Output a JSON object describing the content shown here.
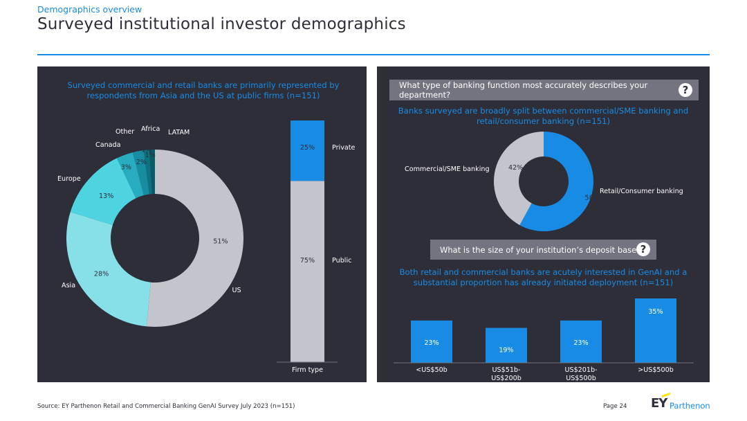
{
  "header": {
    "eyebrow": "Demographics overview",
    "title": "Surveyed institutional investor demographics"
  },
  "left": {
    "subtitle": "Surveyed commercial and retail banks are primarily represented by respondents from Asia and the US at public firms (n=151)"
  },
  "right": {
    "question1": "What type of banking function most accurately describes your department?",
    "subtitle1": "Banks surveyed are broadly split between commercial/SME banking and retail/consumer banking (n=151)",
    "question2": "What is the size of your institution’s deposit base?",
    "subtitle2": "Both retail and commercial banks are acutely interested in GenAI and a substantial proportion has already initiated deployment (n=151)",
    "question_icon": "?"
  },
  "chart_data": [
    {
      "type": "pie",
      "variant": "donut",
      "categories": [
        "US",
        "Asia",
        "Europe",
        "Canada",
        "Other",
        "Africa",
        "LATAM"
      ],
      "values": [
        51,
        28,
        13,
        3,
        2,
        1,
        1
      ],
      "value_labels": [
        "51%",
        "28%",
        "13%",
        "3%",
        "2%",
        "1%",
        "1%"
      ],
      "colors": [
        "#c4c4cd",
        "#87e0e8",
        "#4ed3e0",
        "#27acc0",
        "#168da0",
        "#0e7282",
        "#0a5b69"
      ]
    },
    {
      "type": "bar",
      "variant": "100% stacked column",
      "categories": [
        "Firm type"
      ],
      "series": [
        {
          "name": "Public",
          "values": [
            75
          ],
          "value_label": "75%",
          "color": "#c4c4cd"
        },
        {
          "name": "Private",
          "values": [
            25
          ],
          "value_label": "25%",
          "color": "#188ce5"
        }
      ],
      "xlabel": "Firm type"
    },
    {
      "type": "pie",
      "variant": "donut",
      "categories": [
        "Retail/Consumer banking",
        "Commercial/SME banking"
      ],
      "values": [
        58,
        42
      ],
      "value_labels": [
        "58%",
        "42%"
      ],
      "colors": [
        "#188ce5",
        "#c4c4cd"
      ]
    },
    {
      "type": "bar",
      "categories": [
        "<US$50b",
        "US$51b-\nUS$200b",
        "US$201b-\nUS$500b",
        ">US$500b"
      ],
      "values": [
        23,
        19,
        23,
        35
      ],
      "value_labels": [
        "23%",
        "19%",
        "23%",
        "35%"
      ],
      "color": "#188ce5"
    }
  ],
  "footer": {
    "source": "Source: EY Parthenon Retail and Commercial Banking GenAI Survey July 2023 (n=151)",
    "page": "Page 24",
    "logo_ey": "EY",
    "logo_name": "Parthenon"
  }
}
